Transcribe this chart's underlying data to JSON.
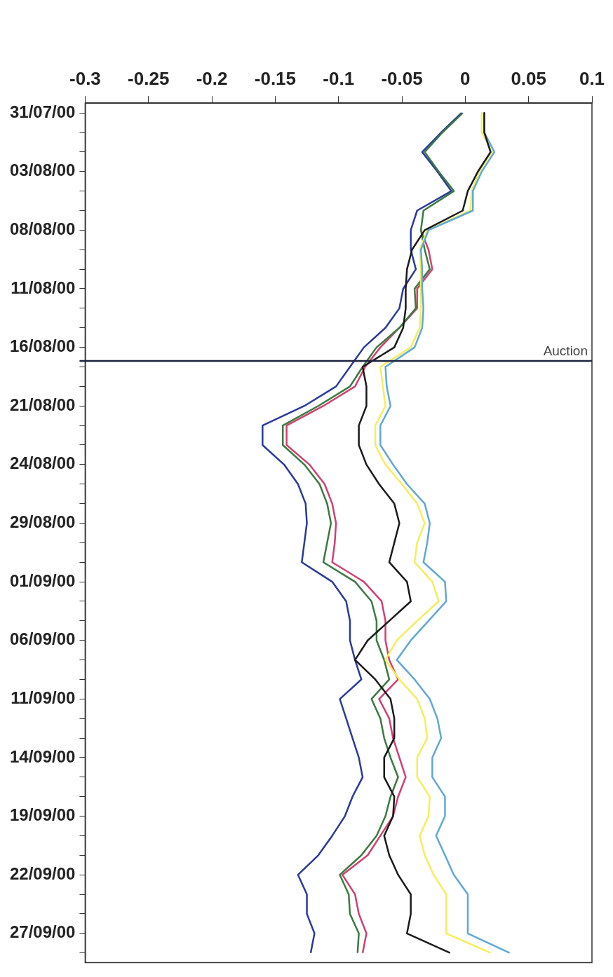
{
  "chart_data": {
    "type": "line",
    "marker": "none",
    "orientation": "horizontal",
    "categories": [
      "31/07/00",
      null,
      null,
      "03/08/00",
      null,
      null,
      "08/08/00",
      null,
      null,
      "11/08/00",
      null,
      null,
      "16/08/00",
      null,
      null,
      "21/08/00",
      null,
      null,
      "24/08/00",
      null,
      null,
      "29/08/00",
      null,
      null,
      "01/09/00",
      null,
      null,
      "06/09/00",
      null,
      null,
      "11/09/00",
      null,
      null,
      "14/09/00",
      null,
      null,
      "19/09/00",
      null,
      null,
      "22/09/00",
      null,
      null,
      "27/09/00",
      null
    ],
    "xlim": [
      -0.3,
      0.1
    ],
    "xticks": [
      -0.3,
      -0.25,
      -0.2,
      -0.15,
      -0.1,
      -0.05,
      0,
      0.05,
      0.1
    ],
    "annotations": [
      "Auction"
    ],
    "series": [
      {
        "color": "#2a3a9a",
        "values": [
          -0.003,
          -0.019,
          -0.034,
          -0.022,
          -0.011,
          -0.038,
          -0.043,
          -0.043,
          -0.039,
          -0.049,
          -0.052,
          -0.063,
          -0.08,
          -0.091,
          -0.102,
          -0.127,
          -0.16,
          -0.16,
          -0.143,
          -0.132,
          -0.126,
          -0.125,
          -0.127,
          -0.129,
          -0.105,
          -0.094,
          -0.091,
          -0.091,
          -0.087,
          -0.082,
          -0.099,
          -0.094,
          -0.089,
          -0.084,
          -0.081,
          -0.089,
          -0.095,
          -0.105,
          -0.116,
          -0.132,
          -0.125,
          -0.125,
          -0.119,
          -0.122
        ]
      },
      {
        "color": "#d04070",
        "values": [
          null,
          null,
          null,
          null,
          null,
          null,
          -0.035,
          -0.029,
          -0.026,
          -0.038,
          -0.038,
          -0.052,
          -0.067,
          -0.079,
          -0.087,
          -0.112,
          -0.141,
          -0.141,
          -0.123,
          -0.111,
          -0.105,
          -0.102,
          -0.103,
          -0.105,
          -0.08,
          -0.066,
          -0.063,
          -0.063,
          -0.06,
          -0.053,
          -0.068,
          -0.06,
          -0.057,
          -0.052,
          -0.047,
          -0.053,
          -0.057,
          -0.067,
          -0.077,
          -0.097,
          -0.087,
          -0.084,
          -0.078,
          -0.081
        ]
      },
      {
        "color": "#3a7a40",
        "values": [
          -0.002,
          -0.018,
          -0.032,
          -0.021,
          -0.009,
          -0.033,
          -0.035,
          -0.032,
          -0.028,
          -0.04,
          -0.039,
          -0.052,
          -0.07,
          -0.081,
          -0.091,
          -0.116,
          -0.144,
          -0.144,
          -0.127,
          -0.115,
          -0.109,
          -0.106,
          -0.109,
          -0.112,
          -0.087,
          -0.074,
          -0.07,
          -0.07,
          -0.064,
          -0.06,
          -0.074,
          -0.067,
          -0.064,
          -0.059,
          -0.053,
          -0.059,
          -0.063,
          -0.07,
          -0.082,
          -0.099,
          -0.092,
          -0.091,
          -0.084,
          -0.085
        ]
      },
      {
        "color": "#f5ee5a",
        "values": [
          0.013,
          0.013,
          0.021,
          0.011,
          0.005,
          0.004,
          -0.03,
          -0.036,
          -0.035,
          -0.035,
          -0.035,
          -0.036,
          -0.043,
          -0.067,
          -0.065,
          -0.063,
          -0.071,
          -0.071,
          -0.063,
          -0.05,
          -0.038,
          -0.032,
          -0.038,
          -0.04,
          -0.026,
          -0.021,
          -0.038,
          -0.054,
          -0.063,
          -0.052,
          -0.038,
          -0.032,
          -0.03,
          -0.038,
          -0.038,
          -0.028,
          -0.029,
          -0.036,
          -0.032,
          -0.025,
          -0.015,
          -0.015,
          -0.015,
          0.02
        ]
      },
      {
        "color": "#5fa8d8",
        "values": [
          0.015,
          0.015,
          0.023,
          0.013,
          0.006,
          0.006,
          -0.029,
          -0.035,
          -0.034,
          -0.034,
          -0.033,
          -0.034,
          -0.04,
          -0.063,
          -0.062,
          -0.059,
          -0.067,
          -0.067,
          -0.057,
          -0.046,
          -0.032,
          -0.028,
          -0.03,
          -0.033,
          -0.016,
          -0.015,
          -0.029,
          -0.043,
          -0.054,
          -0.04,
          -0.028,
          -0.022,
          -0.019,
          -0.026,
          -0.026,
          -0.016,
          -0.016,
          -0.023,
          -0.016,
          -0.009,
          0.002,
          0.002,
          0.002,
          0.035
        ]
      },
      {
        "color": "#1a1a1a",
        "values": [
          0.015,
          0.015,
          0.02,
          0.01,
          0.002,
          -0.002,
          -0.032,
          -0.042,
          -0.046,
          -0.047,
          -0.047,
          -0.049,
          -0.056,
          -0.081,
          -0.078,
          -0.078,
          -0.084,
          -0.084,
          -0.078,
          -0.068,
          -0.056,
          -0.052,
          -0.056,
          -0.06,
          -0.046,
          -0.043,
          -0.06,
          -0.077,
          -0.087,
          -0.071,
          -0.059,
          -0.056,
          -0.056,
          -0.064,
          -0.064,
          -0.056,
          -0.057,
          -0.064,
          -0.06,
          -0.053,
          -0.043,
          -0.043,
          -0.046,
          -0.012
        ]
      }
    ]
  }
}
